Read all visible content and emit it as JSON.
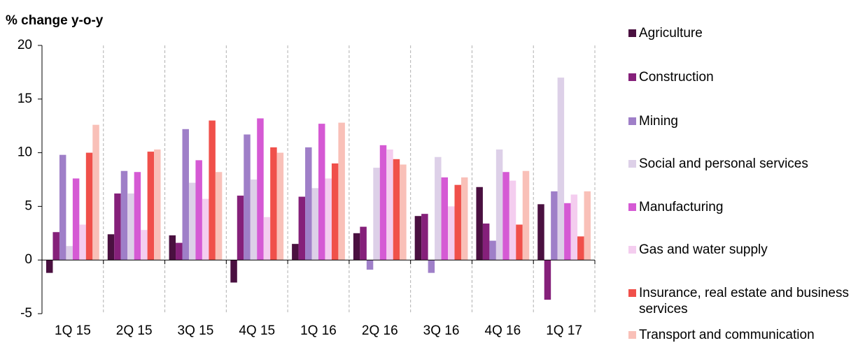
{
  "chart_data": {
    "type": "bar",
    "y_label": "% change y-o-y",
    "categories": [
      "1Q 15",
      "2Q 15",
      "3Q 15",
      "4Q 15",
      "1Q 16",
      "2Q 16",
      "3Q 16",
      "4Q 16",
      "1Q 17"
    ],
    "series": [
      {
        "name": "Agriculture",
        "color": "#4a1040",
        "values": [
          -1.2,
          2.4,
          2.3,
          -2.1,
          1.5,
          2.5,
          4.1,
          6.8,
          5.2
        ]
      },
      {
        "name": "Construction",
        "color": "#85207a",
        "values": [
          2.6,
          6.2,
          1.6,
          6.0,
          5.9,
          3.1,
          4.3,
          3.4,
          -3.7
        ]
      },
      {
        "name": "Mining",
        "color": "#9f7fc8",
        "values": [
          9.8,
          8.3,
          12.2,
          11.7,
          10.5,
          -0.9,
          -1.2,
          1.8,
          6.4
        ]
      },
      {
        "name": "Social and personal services",
        "color": "#ddd0e8",
        "values": [
          1.3,
          6.2,
          7.2,
          7.5,
          6.7,
          8.6,
          9.6,
          10.3,
          17.0
        ]
      },
      {
        "name": "Manufacturing",
        "color": "#d55ad4",
        "values": [
          7.6,
          8.2,
          9.3,
          13.2,
          12.7,
          10.7,
          7.7,
          8.2,
          5.3
        ]
      },
      {
        "name": "Gas and water supply",
        "color": "#f4cdef",
        "values": [
          3.3,
          2.8,
          5.7,
          4.0,
          7.6,
          10.3,
          5.0,
          7.4,
          6.1
        ]
      },
      {
        "name": "Insurance, real estate and business services",
        "color": "#f0504a",
        "values": [
          10.0,
          10.1,
          13.0,
          10.5,
          9.0,
          9.4,
          7.0,
          3.3,
          2.2
        ]
      },
      {
        "name": "Transport and communication",
        "color": "#f9c0b8",
        "values": [
          12.6,
          10.3,
          8.2,
          10.0,
          12.8,
          8.9,
          7.7,
          8.3,
          6.4
        ]
      }
    ],
    "ylim": [
      -5,
      20
    ],
    "yticks": [
      -5,
      0,
      5,
      10,
      15,
      20
    ]
  }
}
